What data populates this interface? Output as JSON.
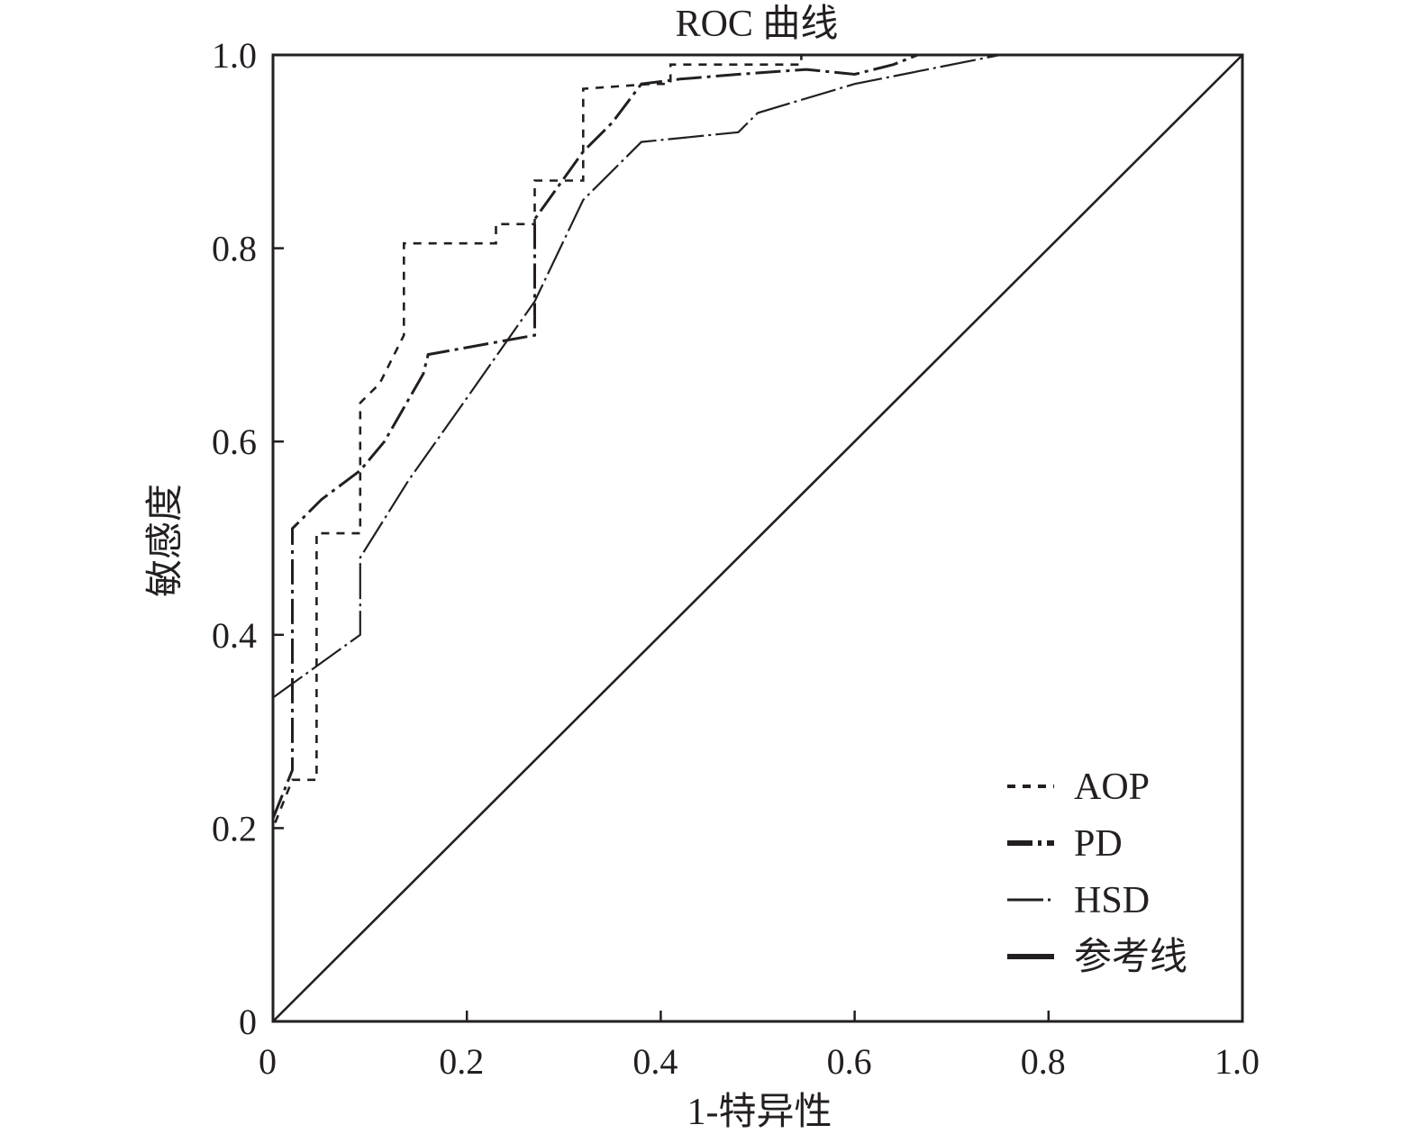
{
  "chart_data": {
    "type": "line",
    "title": "ROC 曲线",
    "xlabel": "1-特异性",
    "ylabel": "敏感度",
    "xlim": [
      0,
      1
    ],
    "ylim": [
      0,
      1
    ],
    "x_ticks": [
      {
        "value": 0,
        "label": "0"
      },
      {
        "value": 0.2,
        "label": "0.2"
      },
      {
        "value": 0.4,
        "label": "0.4"
      },
      {
        "value": 0.6,
        "label": "0.6"
      },
      {
        "value": 0.8,
        "label": "0.8"
      },
      {
        "value": 1.0,
        "label": "1.0"
      }
    ],
    "y_ticks": [
      {
        "value": 0,
        "label": "0"
      },
      {
        "value": 0.2,
        "label": "0.2"
      },
      {
        "value": 0.4,
        "label": "0.4"
      },
      {
        "value": 0.6,
        "label": "0.6"
      },
      {
        "value": 0.8,
        "label": "0.8"
      },
      {
        "value": 1.0,
        "label": "1.0"
      }
    ],
    "grid": false,
    "legend_position": "bottom-right",
    "series": [
      {
        "name": "AOP",
        "color": "#231f20",
        "points": [
          [
            0.0,
            0.0
          ],
          [
            0.0,
            0.2
          ],
          [
            0.02,
            0.25
          ],
          [
            0.045,
            0.25
          ],
          [
            0.045,
            0.505
          ],
          [
            0.09,
            0.505
          ],
          [
            0.09,
            0.64
          ],
          [
            0.11,
            0.66
          ],
          [
            0.135,
            0.71
          ],
          [
            0.135,
            0.805
          ],
          [
            0.23,
            0.805
          ],
          [
            0.23,
            0.825
          ],
          [
            0.27,
            0.825
          ],
          [
            0.27,
            0.87
          ],
          [
            0.32,
            0.87
          ],
          [
            0.32,
            0.965
          ],
          [
            0.39,
            0.97
          ],
          [
            0.41,
            0.97
          ],
          [
            0.41,
            0.99
          ],
          [
            0.545,
            0.99
          ],
          [
            0.545,
            1.0
          ],
          [
            1.0,
            1.0
          ]
        ]
      },
      {
        "name": "PD",
        "color": "#231f20",
        "points": [
          [
            0.0,
            0.21
          ],
          [
            0.02,
            0.26
          ],
          [
            0.02,
            0.51
          ],
          [
            0.05,
            0.54
          ],
          [
            0.09,
            0.57
          ],
          [
            0.115,
            0.6
          ],
          [
            0.155,
            0.67
          ],
          [
            0.16,
            0.69
          ],
          [
            0.27,
            0.71
          ],
          [
            0.27,
            0.83
          ],
          [
            0.32,
            0.9
          ],
          [
            0.35,
            0.93
          ],
          [
            0.38,
            0.97
          ],
          [
            0.42,
            0.975
          ],
          [
            0.48,
            0.98
          ],
          [
            0.55,
            0.985
          ],
          [
            0.6,
            0.98
          ],
          [
            0.64,
            0.99
          ],
          [
            0.665,
            1.0
          ],
          [
            1.0,
            1.0
          ]
        ]
      },
      {
        "name": "HSD",
        "color": "#231f20",
        "points": [
          [
            0.0,
            0.335
          ],
          [
            0.09,
            0.4
          ],
          [
            0.09,
            0.48
          ],
          [
            0.14,
            0.56
          ],
          [
            0.2,
            0.645
          ],
          [
            0.27,
            0.745
          ],
          [
            0.32,
            0.85
          ],
          [
            0.38,
            0.91
          ],
          [
            0.48,
            0.92
          ],
          [
            0.5,
            0.94
          ],
          [
            0.6,
            0.97
          ],
          [
            0.65,
            0.98
          ],
          [
            0.75,
            1.0
          ],
          [
            1.0,
            1.0
          ]
        ]
      },
      {
        "name": "参考线",
        "color": "#231f20",
        "points": [
          [
            0,
            0
          ],
          [
            1,
            1
          ]
        ]
      }
    ]
  }
}
